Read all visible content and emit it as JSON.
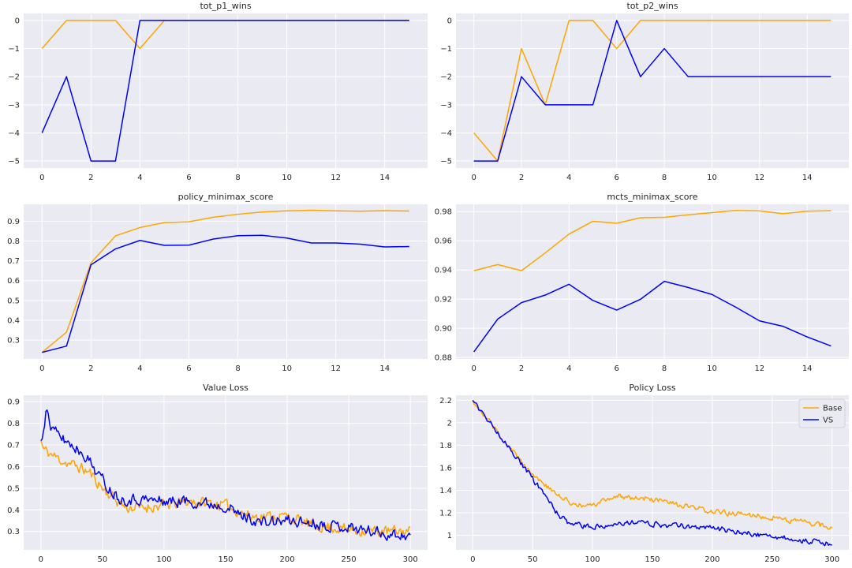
{
  "colors": {
    "base": "#FFA500",
    "vs": "#0000FF",
    "panel_bg": "#EAEAF2",
    "grid": "#FFFFFF"
  },
  "legend": {
    "placement": "upper-right",
    "entries": [
      "Base",
      "VS"
    ]
  },
  "chart_data": [
    {
      "id": "p1",
      "type": "line",
      "title": "tot_p1_wins",
      "xlim": [
        -0.75,
        15.75
      ],
      "ylim": [
        -5.25,
        0.25
      ],
      "xticks": [
        0,
        2,
        4,
        6,
        8,
        10,
        12,
        14
      ],
      "yticks": [
        0,
        -1,
        -2,
        -3,
        -4,
        -5
      ],
      "x": [
        0,
        1,
        2,
        3,
        4,
        5,
        6,
        7,
        8,
        9,
        10,
        11,
        12,
        13,
        14,
        15
      ],
      "series": [
        {
          "color": "base",
          "values": [
            -1,
            0,
            0,
            0,
            -1,
            0,
            0,
            0,
            0,
            0,
            0,
            0,
            0,
            0,
            0,
            0
          ]
        },
        {
          "color": "vs",
          "values": [
            -4,
            -2,
            -5,
            -5,
            0,
            0,
            0,
            0,
            0,
            0,
            0,
            0,
            0,
            0,
            0,
            0
          ]
        }
      ]
    },
    {
      "id": "p2",
      "type": "line",
      "title": "tot_p2_wins",
      "xlim": [
        -0.75,
        15.75
      ],
      "ylim": [
        -5.25,
        0.25
      ],
      "xticks": [
        0,
        2,
        4,
        6,
        8,
        10,
        12,
        14
      ],
      "yticks": [
        0,
        -1,
        -2,
        -3,
        -4,
        -5
      ],
      "x": [
        0,
        1,
        2,
        3,
        4,
        5,
        6,
        7,
        8,
        9,
        10,
        11,
        12,
        13,
        14,
        15
      ],
      "series": [
        {
          "color": "base",
          "values": [
            -4,
            -5,
            -1,
            -3,
            0,
            0,
            -1,
            0,
            0,
            0,
            0,
            0,
            0,
            0,
            0,
            0
          ]
        },
        {
          "color": "vs",
          "values": [
            -5,
            -5,
            -2,
            -3,
            -3,
            -3,
            0,
            -2,
            -1,
            -2,
            -2,
            -2,
            -2,
            -2,
            -2,
            -2
          ]
        }
      ]
    },
    {
      "id": "p3",
      "type": "line",
      "title": "policy_minimax_score",
      "xlim": [
        -0.75,
        15.75
      ],
      "ylim": [
        0.205,
        0.985
      ],
      "xticks": [
        0,
        2,
        4,
        6,
        8,
        10,
        12,
        14
      ],
      "yticks": [
        0.9,
        0.8,
        0.7,
        0.6,
        0.5,
        0.4,
        0.3
      ],
      "x": [
        0,
        1,
        2,
        3,
        4,
        5,
        6,
        7,
        8,
        9,
        10,
        11,
        12,
        13,
        14,
        15
      ],
      "series": [
        {
          "color": "base",
          "values": [
            0.238,
            0.34,
            0.69,
            0.826,
            0.868,
            0.893,
            0.897,
            0.92,
            0.935,
            0.946,
            0.952,
            0.955,
            0.952,
            0.95,
            0.953,
            0.951
          ]
        },
        {
          "color": "vs",
          "values": [
            0.238,
            0.27,
            0.68,
            0.76,
            0.803,
            0.778,
            0.779,
            0.81,
            0.827,
            0.829,
            0.815,
            0.79,
            0.79,
            0.784,
            0.77,
            0.772
          ]
        }
      ]
    },
    {
      "id": "p4",
      "type": "line",
      "title": "mcts_minimax_score",
      "xlim": [
        -0.75,
        15.75
      ],
      "ylim": [
        0.879,
        0.985
      ],
      "xticks": [
        0,
        2,
        4,
        6,
        8,
        10,
        12,
        14
      ],
      "yticks": [
        0.98,
        0.96,
        0.94,
        0.92,
        0.9,
        0.88
      ],
      "ytick_labels": [
        "0.98",
        "0.96",
        "0.94",
        "0.92",
        "0.90",
        "0.88"
      ],
      "x": [
        0,
        1,
        2,
        3,
        4,
        5,
        6,
        7,
        8,
        9,
        10,
        11,
        12,
        13,
        14,
        15
      ],
      "series": [
        {
          "color": "base",
          "values": [
            0.9395,
            0.9437,
            0.9395,
            0.9517,
            0.9646,
            0.9734,
            0.972,
            0.9758,
            0.9761,
            0.9778,
            0.9793,
            0.9808,
            0.9805,
            0.9786,
            0.9803,
            0.9806
          ]
        },
        {
          "color": "vs",
          "values": [
            0.8838,
            0.9063,
            0.9176,
            0.9228,
            0.9302,
            0.9191,
            0.9125,
            0.9199,
            0.9322,
            0.928,
            0.9232,
            0.9145,
            0.9051,
            0.9013,
            0.8941,
            0.8879
          ]
        }
      ]
    },
    {
      "id": "p5",
      "type": "line",
      "title": "Value Loss",
      "xlim": [
        -14,
        314
      ],
      "ylim": [
        0.215,
        0.93
      ],
      "xticks": [
        0,
        50,
        100,
        150,
        200,
        250,
        300
      ],
      "yticks": [
        0.9,
        0.8,
        0.7,
        0.6,
        0.5,
        0.4,
        0.3
      ],
      "noise_seed": 11,
      "series": [
        {
          "color": "base",
          "anchors": [
            [
              0,
              0.72
            ],
            [
              2,
              0.68
            ],
            [
              10,
              0.65
            ],
            [
              20,
              0.62
            ],
            [
              30,
              0.6
            ],
            [
              40,
              0.57
            ],
            [
              50,
              0.5
            ],
            [
              60,
              0.45
            ],
            [
              70,
              0.41
            ],
            [
              80,
              0.41
            ],
            [
              100,
              0.42
            ],
            [
              120,
              0.44
            ],
            [
              140,
              0.43
            ],
            [
              150,
              0.42
            ],
            [
              170,
              0.37
            ],
            [
              200,
              0.37
            ],
            [
              220,
              0.33
            ],
            [
              250,
              0.31
            ],
            [
              270,
              0.3
            ],
            [
              300,
              0.3
            ]
          ],
          "noise": 0.024
        },
        {
          "color": "vs",
          "anchors": [
            [
              0,
              0.72
            ],
            [
              3,
              0.82
            ],
            [
              5,
              0.87
            ],
            [
              8,
              0.78
            ],
            [
              15,
              0.74
            ],
            [
              25,
              0.7
            ],
            [
              35,
              0.66
            ],
            [
              45,
              0.58
            ],
            [
              55,
              0.5
            ],
            [
              65,
              0.45
            ],
            [
              80,
              0.45
            ],
            [
              100,
              0.44
            ],
            [
              120,
              0.44
            ],
            [
              150,
              0.42
            ],
            [
              160,
              0.38
            ],
            [
              180,
              0.34
            ],
            [
              200,
              0.35
            ],
            [
              220,
              0.34
            ],
            [
              250,
              0.32
            ],
            [
              280,
              0.29
            ],
            [
              300,
              0.28
            ]
          ],
          "noise": 0.024
        }
      ]
    },
    {
      "id": "p6",
      "type": "line",
      "title": "Policy Loss",
      "xlim": [
        -14,
        314
      ],
      "ylim": [
        0.87,
        2.245
      ],
      "xticks": [
        0,
        50,
        100,
        150,
        200,
        250,
        300
      ],
      "yticks": [
        2.2,
        2.0,
        1.8,
        1.6,
        1.4,
        1.2,
        1.0
      ],
      "noise_seed": 29,
      "legend": true,
      "series": [
        {
          "name": "Base",
          "color": "base",
          "anchors": [
            [
              0,
              2.2
            ],
            [
              10,
              2.07
            ],
            [
              20,
              1.92
            ],
            [
              30,
              1.8
            ],
            [
              40,
              1.66
            ],
            [
              50,
              1.55
            ],
            [
              60,
              1.45
            ],
            [
              70,
              1.36
            ],
            [
              80,
              1.3
            ],
            [
              90,
              1.26
            ],
            [
              100,
              1.26
            ],
            [
              110,
              1.31
            ],
            [
              120,
              1.35
            ],
            [
              130,
              1.34
            ],
            [
              150,
              1.32
            ],
            [
              170,
              1.27
            ],
            [
              200,
              1.21
            ],
            [
              230,
              1.18
            ],
            [
              250,
              1.16
            ],
            [
              280,
              1.11
            ],
            [
              300,
              1.07
            ]
          ],
          "noise": 0.022
        },
        {
          "name": "VS",
          "color": "vs",
          "anchors": [
            [
              0,
              2.2
            ],
            [
              10,
              2.06
            ],
            [
              20,
              1.93
            ],
            [
              30,
              1.79
            ],
            [
              40,
              1.64
            ],
            [
              50,
              1.5
            ],
            [
              60,
              1.36
            ],
            [
              70,
              1.2
            ],
            [
              80,
              1.1
            ],
            [
              100,
              1.07
            ],
            [
              120,
              1.11
            ],
            [
              140,
              1.11
            ],
            [
              160,
              1.09
            ],
            [
              180,
              1.08
            ],
            [
              200,
              1.07
            ],
            [
              220,
              1.03
            ],
            [
              250,
              0.99
            ],
            [
              280,
              0.95
            ],
            [
              300,
              0.92
            ]
          ],
          "noise": 0.022
        }
      ]
    }
  ]
}
